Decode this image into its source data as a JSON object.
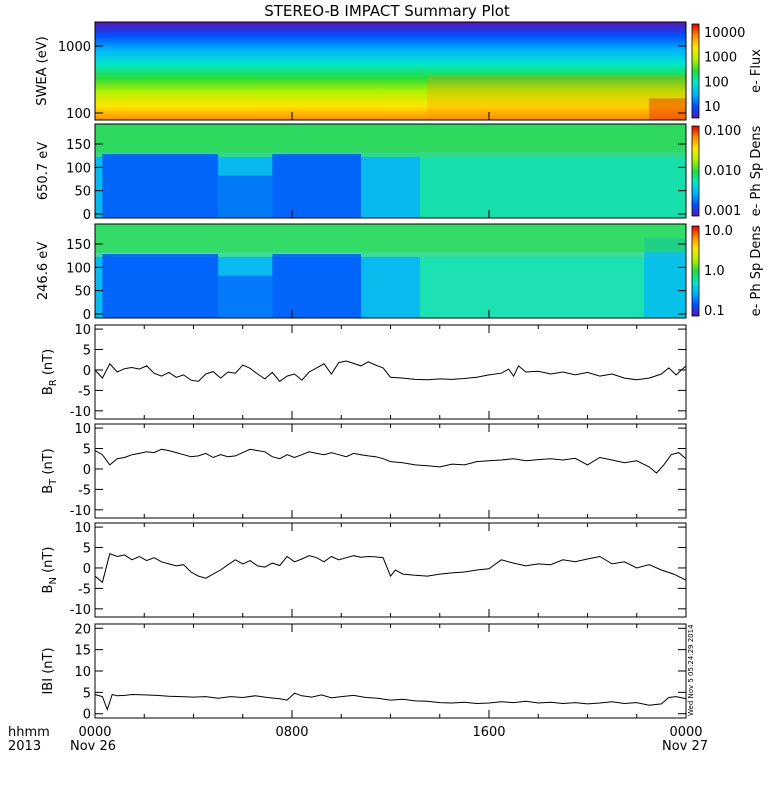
{
  "title": "STEREO-B IMPACT Summary Plot",
  "stamp": "Wed Nov  5 05:24:29 2014",
  "footer": {
    "hhmm": "hhmm",
    "year": "2013",
    "x_ticks": [
      "0000",
      "0800",
      "1600",
      "0000"
    ],
    "date_start": "Nov 26",
    "date_end": "Nov 27"
  },
  "colors": {
    "spectrogram_palette": [
      "#5a14b4",
      "#0050ff",
      "#00b4ff",
      "#00e6c8",
      "#28dc3c",
      "#b4f000",
      "#ffe600",
      "#ff8c00",
      "#e10000"
    ],
    "line": "#000000"
  },
  "chart_data": [
    {
      "type": "heatmap",
      "ylabel": "SWEA (eV)",
      "y_scale": "log",
      "y_ticks": [
        "1000",
        "100"
      ],
      "colorbar_label": "e- Flux",
      "colorbar_ticks": [
        "10000",
        "1000",
        "100",
        "10"
      ],
      "colorbar_scale": "log",
      "xlim_hours": [
        0,
        24
      ]
    },
    {
      "type": "heatmap",
      "ylabel": "650.7 eV",
      "y_ticks": [
        "150",
        "100",
        "50",
        "0"
      ],
      "ylim": [
        0,
        180
      ],
      "colorbar_label": "e- Ph Sp Dens",
      "colorbar_ticks": [
        "0.100",
        "0.010",
        "0.001"
      ],
      "colorbar_scale": "log",
      "xlim_hours": [
        0,
        24
      ]
    },
    {
      "type": "heatmap",
      "ylabel": "246.6 eV",
      "y_ticks": [
        "150",
        "100",
        "50",
        "0"
      ],
      "ylim": [
        0,
        180
      ],
      "colorbar_label": "e- Ph Sp Dens",
      "colorbar_ticks": [
        "10.0",
        "1.0",
        "0.1"
      ],
      "colorbar_scale": "log",
      "xlim_hours": [
        0,
        24
      ]
    },
    {
      "type": "line",
      "ylabel": "B_R (nT)",
      "ylabel_main": "B",
      "ylabel_sub": "R",
      "ylabel_unit": "(nT)",
      "ylim": [
        -12,
        11
      ],
      "y_ticks": [
        "10",
        "5",
        "0",
        "-5",
        "-10"
      ],
      "x": [
        0,
        0.3,
        0.6,
        0.9,
        1.2,
        1.5,
        1.8,
        2.1,
        2.4,
        2.7,
        3.0,
        3.3,
        3.6,
        3.9,
        4.2,
        4.5,
        4.8,
        5.1,
        5.4,
        5.7,
        6.0,
        6.3,
        6.6,
        6.9,
        7.2,
        7.5,
        7.8,
        8.1,
        8.4,
        8.7,
        9.0,
        9.3,
        9.6,
        9.9,
        10.2,
        10.5,
        10.8,
        11.1,
        11.4,
        11.7,
        12.0,
        12.5,
        13,
        13.5,
        14,
        14.5,
        15,
        15.5,
        16,
        16.5,
        16.8,
        17.0,
        17.2,
        17.5,
        18,
        18.5,
        19,
        19.5,
        20,
        20.5,
        21,
        21.5,
        22,
        22.5,
        23,
        23.3,
        23.6,
        24
      ],
      "values": [
        0,
        -2,
        1.5,
        -0.5,
        0.3,
        0.6,
        0.2,
        1.0,
        -0.8,
        -1.5,
        -0.6,
        -1.8,
        -1.2,
        -2.5,
        -2.8,
        -1.0,
        -0.4,
        -2.0,
        -0.5,
        -0.8,
        1.2,
        0.4,
        -1.0,
        -2.2,
        -0.6,
        -2.8,
        -1.5,
        -1.0,
        -2.5,
        -0.5,
        0.5,
        1.5,
        -1.0,
        1.8,
        2.2,
        1.6,
        1.0,
        2.0,
        1.2,
        0.5,
        -1.8,
        -2.0,
        -2.3,
        -2.4,
        -2.2,
        -2.3,
        -2.1,
        -1.8,
        -1.2,
        -0.8,
        0.2,
        -1.5,
        1.0,
        -0.5,
        -0.3,
        -1.0,
        -0.5,
        -1.2,
        -0.6,
        -1.5,
        -1.0,
        -2.0,
        -2.4,
        -2.0,
        -1.0,
        0.5,
        -1.2,
        1.0
      ]
    },
    {
      "type": "line",
      "ylabel": "B_T (nT)",
      "ylabel_main": "B",
      "ylabel_sub": "T",
      "ylabel_unit": "(nT)",
      "ylim": [
        -12,
        11
      ],
      "y_ticks": [
        "10",
        "5",
        "0",
        "-5",
        "-10"
      ],
      "x": [
        0,
        0.3,
        0.6,
        0.9,
        1.2,
        1.5,
        1.8,
        2.1,
        2.4,
        2.7,
        3.0,
        3.3,
        3.6,
        3.9,
        4.2,
        4.5,
        4.8,
        5.1,
        5.4,
        5.7,
        6.0,
        6.3,
        6.6,
        6.9,
        7.2,
        7.5,
        7.8,
        8.1,
        8.4,
        8.7,
        9.0,
        9.3,
        9.6,
        9.9,
        10.2,
        10.5,
        10.8,
        11.1,
        11.4,
        11.7,
        12.0,
        12.5,
        13,
        13.5,
        14,
        14.5,
        15,
        15.5,
        16,
        16.5,
        17,
        17.5,
        18,
        18.5,
        19,
        19.5,
        20,
        20.5,
        21,
        21.5,
        22,
        22.5,
        22.8,
        23.1,
        23.4,
        23.7,
        24
      ],
      "values": [
        4.5,
        3.5,
        1.0,
        2.5,
        2.8,
        3.5,
        3.8,
        4.2,
        4.0,
        4.8,
        4.5,
        4.0,
        3.5,
        3.0,
        3.2,
        3.8,
        2.8,
        3.5,
        3.0,
        3.2,
        4.0,
        4.8,
        4.5,
        4.2,
        3.0,
        2.5,
        3.5,
        2.8,
        3.5,
        4.2,
        3.8,
        3.5,
        4.0,
        3.5,
        3.0,
        3.8,
        3.5,
        3.2,
        3.0,
        2.5,
        1.8,
        1.5,
        1.0,
        0.8,
        0.5,
        1.2,
        1.0,
        1.8,
        2.0,
        2.2,
        2.5,
        2.0,
        2.3,
        2.5,
        2.2,
        2.6,
        1.0,
        2.8,
        2.2,
        1.5,
        2.0,
        0.5,
        -1.0,
        1.0,
        3.5,
        4.0,
        2.5
      ]
    },
    {
      "type": "line",
      "ylabel": "B_N (nT)",
      "ylabel_main": "B",
      "ylabel_sub": "N",
      "ylabel_unit": "(nT)",
      "ylim": [
        -12,
        11
      ],
      "y_ticks": [
        "10",
        "5",
        "0",
        "-5",
        "-10"
      ],
      "x": [
        0,
        0.3,
        0.6,
        0.9,
        1.2,
        1.5,
        1.8,
        2.1,
        2.4,
        2.7,
        3.0,
        3.3,
        3.6,
        3.9,
        4.2,
        4.5,
        4.8,
        5.1,
        5.4,
        5.7,
        6.0,
        6.3,
        6.6,
        6.9,
        7.2,
        7.5,
        7.8,
        8.1,
        8.4,
        8.7,
        9.0,
        9.3,
        9.6,
        9.9,
        10.2,
        10.5,
        10.8,
        11.1,
        11.4,
        11.7,
        12.0,
        12.2,
        12.5,
        13,
        13.5,
        14,
        14.5,
        15,
        15.5,
        16,
        16.5,
        17,
        17.5,
        18,
        18.5,
        19,
        19.5,
        20,
        20.5,
        21,
        21.5,
        22,
        22.5,
        23,
        23.5,
        24
      ],
      "values": [
        -2,
        -3.5,
        3.5,
        2.8,
        3.2,
        2.0,
        2.8,
        1.8,
        2.5,
        1.5,
        1.0,
        0.5,
        0.8,
        -1.0,
        -2.0,
        -2.5,
        -1.5,
        -0.5,
        0.8,
        2.0,
        1.0,
        1.8,
        0.5,
        0.2,
        1.2,
        0.6,
        2.8,
        1.5,
        2.2,
        3.0,
        2.5,
        1.5,
        2.8,
        2.0,
        2.5,
        3.0,
        2.6,
        2.8,
        2.7,
        2.5,
        -2.0,
        -0.5,
        -1.5,
        -1.8,
        -2.0,
        -1.5,
        -1.2,
        -1.0,
        -0.5,
        -0.2,
        2.0,
        1.2,
        0.5,
        1.0,
        0.8,
        2.0,
        1.5,
        2.2,
        2.8,
        1.0,
        1.5,
        0.0,
        0.8,
        -0.5,
        -1.5,
        -3.0
      ]
    },
    {
      "type": "line",
      "ylabel": "|B| (nT)",
      "ylabel_main": "IBI",
      "ylabel_unit": "(nT)",
      "ylim": [
        -1,
        21
      ],
      "y_ticks": [
        "20",
        "15",
        "10",
        "5",
        "0"
      ],
      "x": [
        0,
        0.3,
        0.5,
        0.7,
        0.9,
        1.2,
        1.5,
        2,
        2.5,
        3,
        3.5,
        4,
        4.5,
        5,
        5.5,
        6,
        6.5,
        7,
        7.5,
        7.8,
        8.1,
        8.4,
        8.8,
        9.2,
        9.6,
        10,
        10.5,
        11,
        11.5,
        12,
        12.5,
        13,
        13.5,
        14,
        14.5,
        15,
        15.5,
        16,
        16.5,
        17,
        17.5,
        18,
        18.5,
        19,
        19.5,
        20,
        20.5,
        21,
        21.5,
        22,
        22.5,
        23,
        23.3,
        23.6,
        24
      ],
      "values": [
        4.5,
        4.0,
        1.0,
        4.5,
        4.2,
        4.3,
        4.5,
        4.4,
        4.3,
        4.1,
        4.0,
        3.9,
        4.0,
        3.6,
        4.0,
        3.8,
        4.2,
        3.8,
        3.5,
        3.2,
        4.8,
        4.2,
        3.9,
        4.4,
        3.7,
        4.0,
        4.3,
        3.8,
        3.6,
        3.2,
        3.4,
        3.0,
        2.9,
        2.6,
        2.5,
        2.7,
        2.4,
        2.5,
        2.8,
        2.6,
        2.9,
        2.5,
        2.7,
        2.4,
        2.6,
        2.3,
        2.5,
        2.8,
        2.4,
        2.6,
        2.0,
        2.3,
        3.8,
        4.0,
        3.5
      ]
    }
  ]
}
